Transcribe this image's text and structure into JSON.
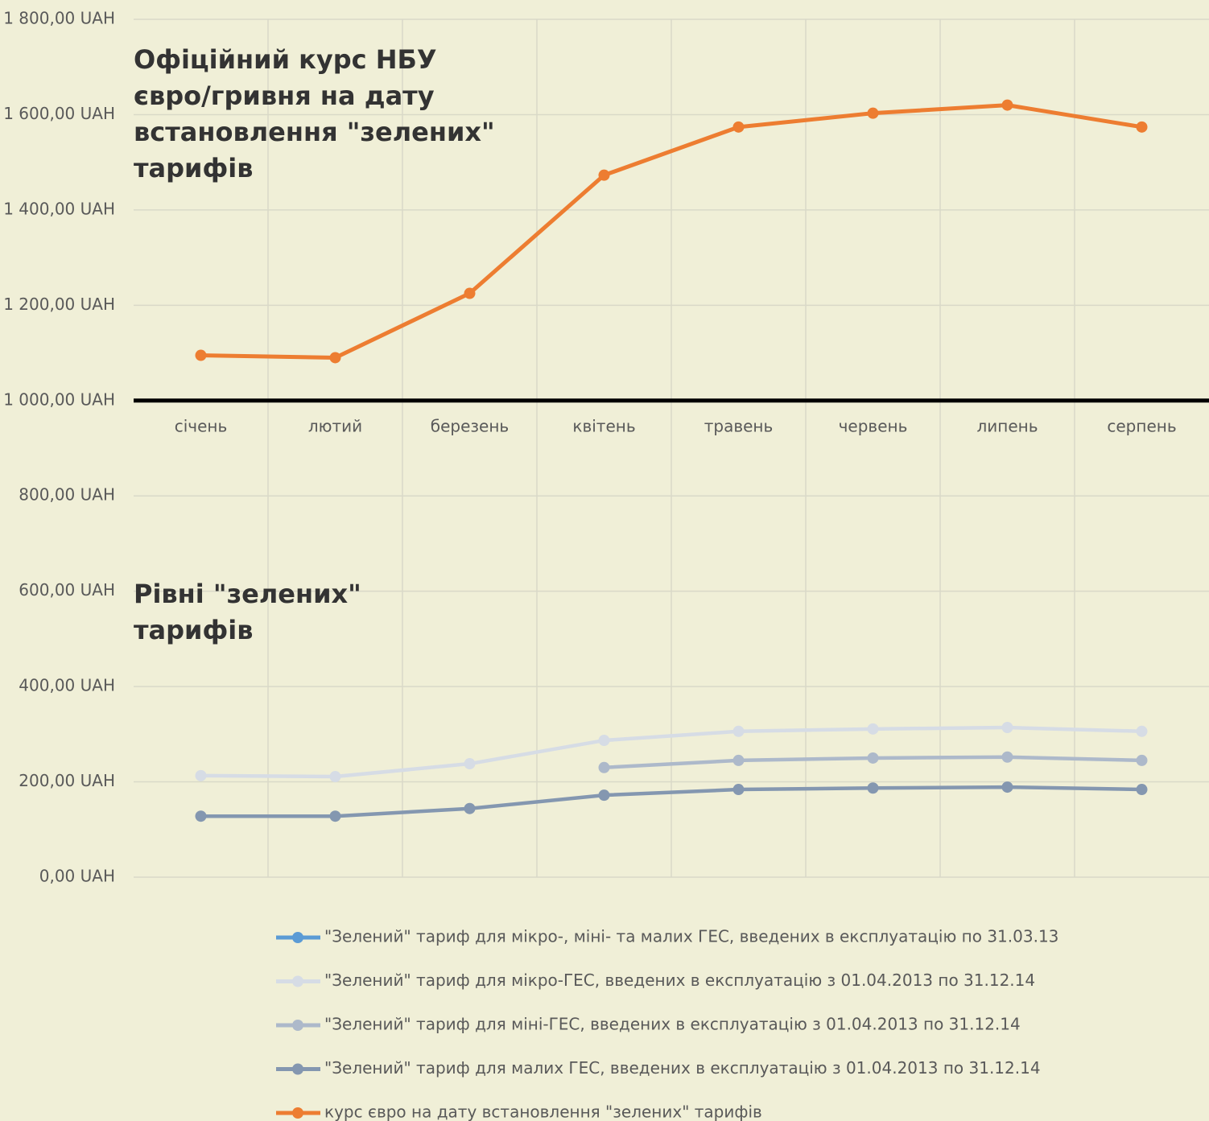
{
  "chart_data": {
    "type": "line",
    "annotations": [
      {
        "lines": [
          "Офіційний курс НБУ",
          "євро/гривня на дату",
          "встановлення \"зелених\"",
          "тарифів"
        ]
      },
      {
        "lines": [
          "Рівні \"зелених\"",
          "тарифів"
        ]
      }
    ],
    "categories": [
      "січень",
      "лютий",
      "березень",
      "квітень",
      "травень",
      "червень",
      "липень",
      "серпень"
    ],
    "series": [
      {
        "name": "\"Зелений\" тариф для мікро-, міні- та малих ГЕС, введених в експлуатацію по 31.03.13",
        "color": "#5b9bd5",
        "values": [
          null,
          null,
          null,
          null,
          null,
          null,
          null,
          null
        ]
      },
      {
        "name": "\"Зелений\" тариф для мікро-ГЕС, введених в експлуатацію з 01.04.2013 по 31.12.14",
        "color": "#d6dce5",
        "values": [
          213,
          211,
          238,
          287,
          306,
          311,
          314,
          306
        ]
      },
      {
        "name": "\"Зелений\" тариф для міні-ГЕС, введених в експлуатацію з 01.04.2013 по 31.12.14",
        "color": "#adb9ca",
        "values": [
          null,
          null,
          null,
          230,
          245,
          250,
          252,
          245
        ]
      },
      {
        "name": "\"Зелений\" тариф для малих ГЕС, введених в експлуатацію з 01.04.2013 по 31.12.14",
        "color": "#8497b0",
        "values": [
          128,
          128,
          144,
          172,
          184,
          187,
          189,
          184
        ]
      },
      {
        "name": "курс євро на дату встановлення \"зелених\" тарифів",
        "color": "#ed7d31",
        "values": [
          1095,
          1090,
          1225,
          1473,
          1574,
          1603,
          1620,
          1574
        ]
      }
    ],
    "ylim": [
      0,
      1800
    ],
    "yticks": [
      {
        "value": 0,
        "label": "0,00 UAH"
      },
      {
        "value": 200,
        "label": "200,00 UAH"
      },
      {
        "value": 400,
        "label": "400,00 UAH"
      },
      {
        "value": 600,
        "label": "600,00 UAH"
      },
      {
        "value": 800,
        "label": "800,00 UAH"
      },
      {
        "value": 1000,
        "label": "1 000,00 UAH"
      },
      {
        "value": 1200,
        "label": "1 200,00 UAH"
      },
      {
        "value": 1400,
        "label": "1 400,00 UAH"
      },
      {
        "value": 1600,
        "label": "1 600,00 UAH"
      },
      {
        "value": 1800,
        "label": "1 800,00 UAH"
      }
    ],
    "x_axis_crosses_at": 1000,
    "grid": true,
    "legend": "bottom"
  }
}
